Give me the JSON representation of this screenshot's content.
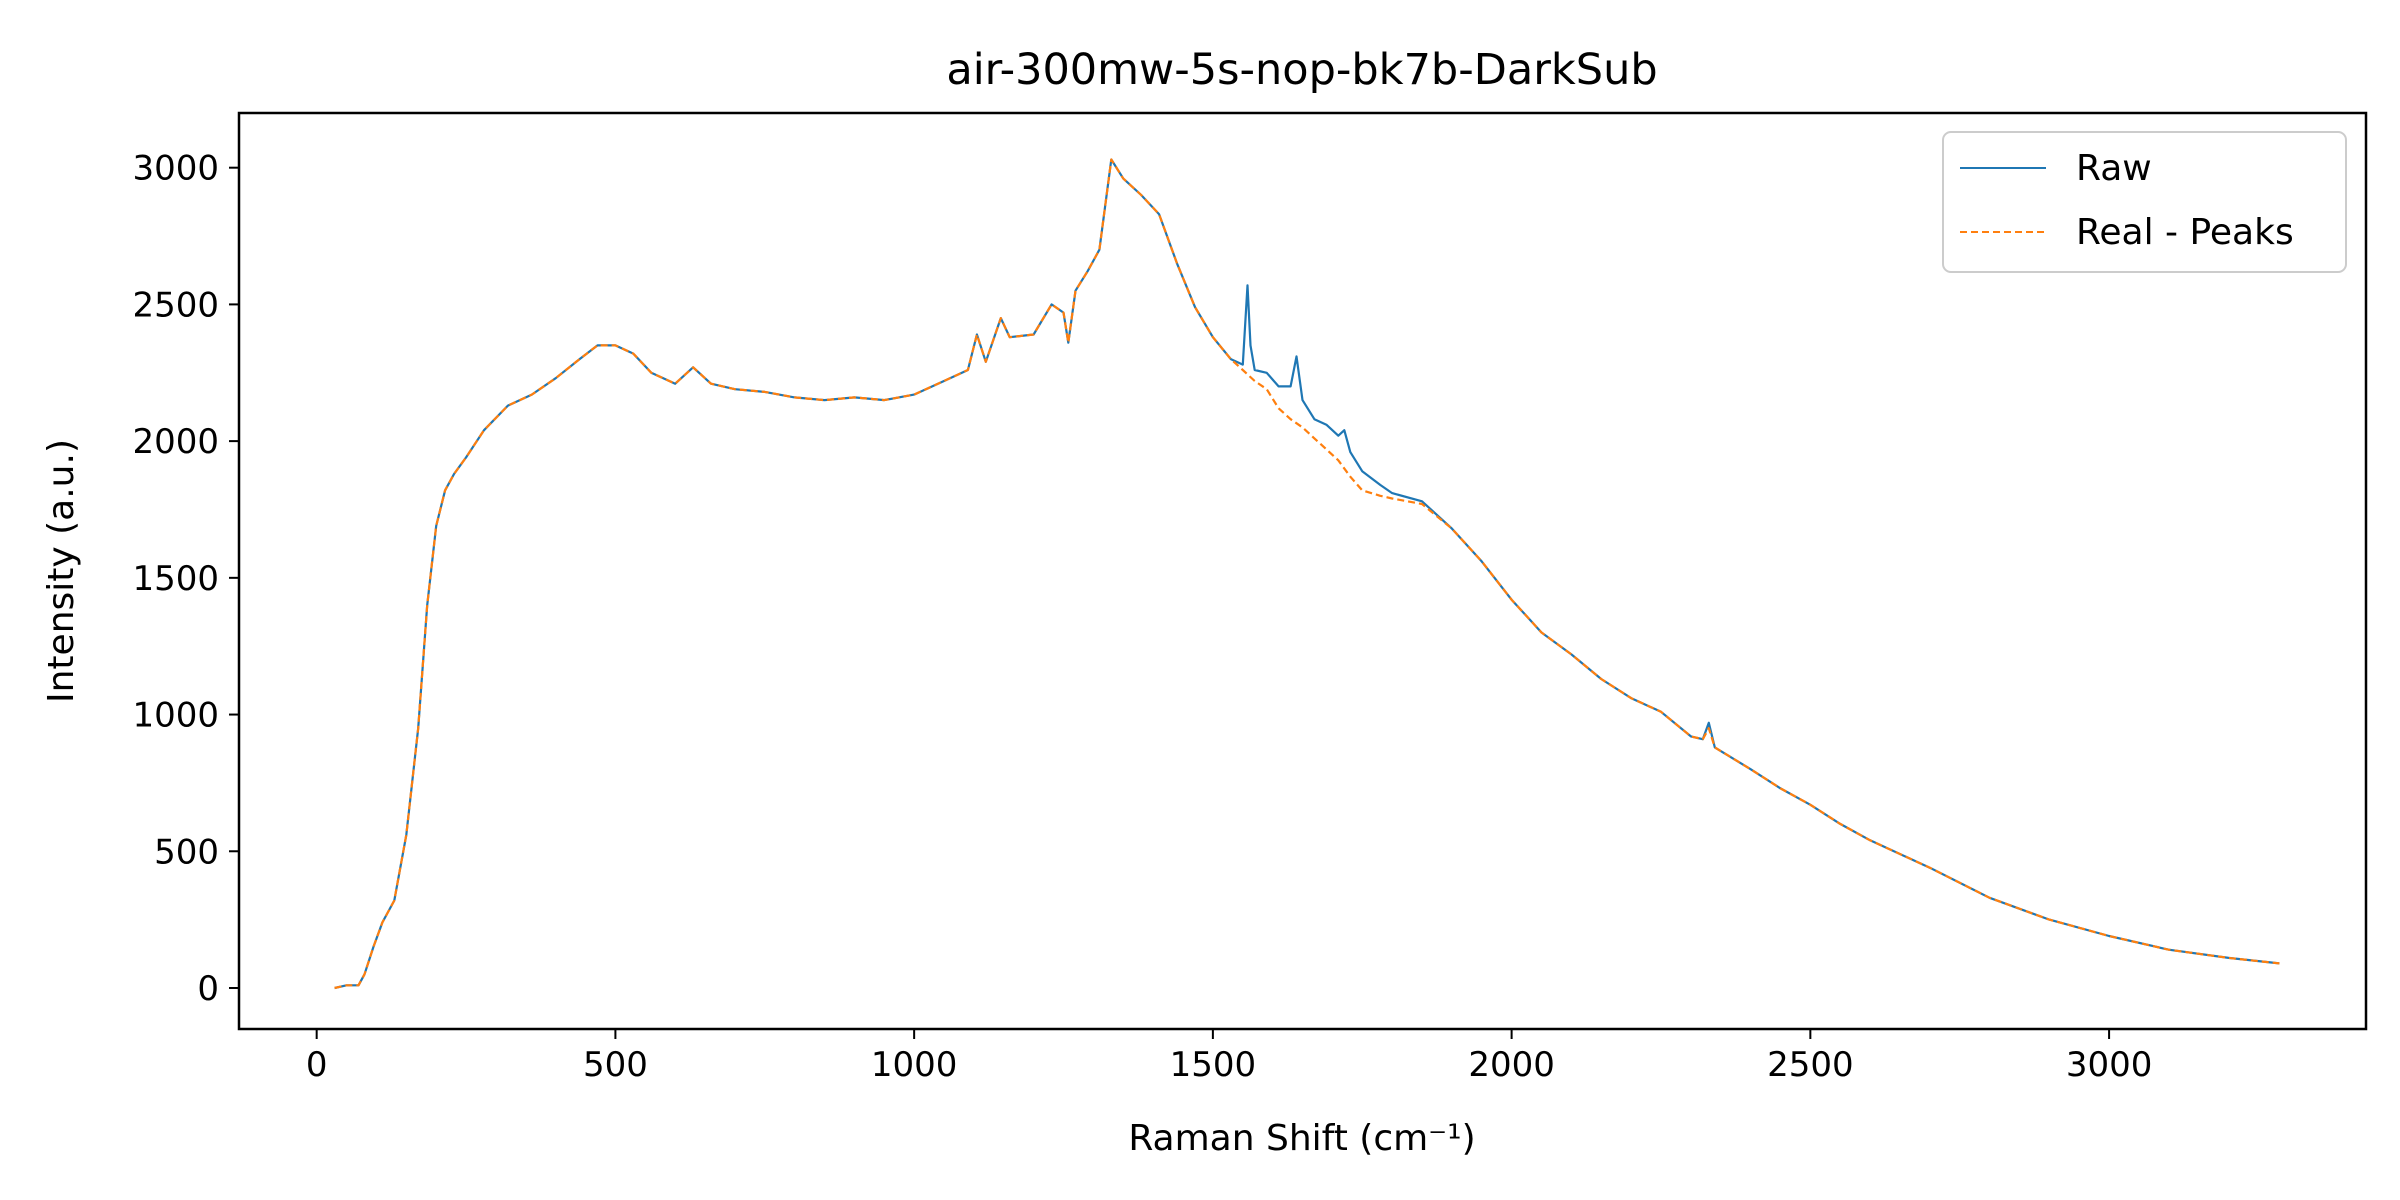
{
  "chart_data": {
    "type": "line",
    "title": "air-300mw-5s-nop-bk7b-DarkSub",
    "xlabel": "Raman Shift (cm⁻¹)",
    "ylabel": "Intensity (a.u.)",
    "xlim": [
      -130,
      3430
    ],
    "ylim": [
      -150,
      3200
    ],
    "xticks": [
      0,
      500,
      1000,
      1500,
      2000,
      2500,
      3000
    ],
    "yticks": [
      0,
      500,
      1000,
      1500,
      2000,
      2500,
      3000
    ],
    "grid": false,
    "legend": "top-right",
    "series": [
      {
        "name": "Raw",
        "color": "#1f77b4",
        "style": "solid",
        "x": [
          30,
          50,
          70,
          80,
          95,
          110,
          130,
          150,
          170,
          185,
          200,
          215,
          230,
          250,
          280,
          320,
          360,
          400,
          440,
          470,
          500,
          530,
          560,
          600,
          630,
          660,
          700,
          750,
          800,
          850,
          900,
          950,
          1000,
          1050,
          1090,
          1105,
          1120,
          1145,
          1160,
          1200,
          1230,
          1250,
          1258,
          1270,
          1290,
          1310,
          1330,
          1350,
          1380,
          1410,
          1440,
          1470,
          1500,
          1530,
          1550,
          1558,
          1563,
          1570,
          1590,
          1610,
          1630,
          1640,
          1650,
          1670,
          1690,
          1710,
          1720,
          1730,
          1750,
          1780,
          1800,
          1850,
          1900,
          1950,
          2000,
          2050,
          2100,
          2150,
          2200,
          2250,
          2300,
          2320,
          2330,
          2340,
          2400,
          2450,
          2500,
          2550,
          2600,
          2700,
          2800,
          2900,
          3000,
          3100,
          3200,
          3285
        ],
        "y": [
          0,
          10,
          10,
          50,
          150,
          240,
          320,
          560,
          950,
          1400,
          1690,
          1820,
          1880,
          1940,
          2040,
          2130,
          2170,
          2230,
          2300,
          2350,
          2350,
          2320,
          2250,
          2210,
          2270,
          2210,
          2190,
          2180,
          2160,
          2150,
          2160,
          2150,
          2170,
          2220,
          2260,
          2390,
          2290,
          2450,
          2380,
          2390,
          2500,
          2470,
          2360,
          2550,
          2620,
          2700,
          3030,
          2960,
          2900,
          2830,
          2650,
          2490,
          2380,
          2300,
          2280,
          2570,
          2350,
          2260,
          2250,
          2200,
          2200,
          2310,
          2150,
          2080,
          2060,
          2020,
          2040,
          1960,
          1890,
          1840,
          1810,
          1780,
          1680,
          1560,
          1420,
          1300,
          1220,
          1130,
          1060,
          1010,
          920,
          910,
          970,
          880,
          800,
          730,
          670,
          600,
          540,
          440,
          330,
          250,
          190,
          140,
          110,
          90
        ]
      },
      {
        "name": "Real - Peaks",
        "color": "#ff7f0e",
        "style": "dashed",
        "x": [
          30,
          50,
          70,
          80,
          95,
          110,
          130,
          150,
          170,
          185,
          200,
          215,
          230,
          250,
          280,
          320,
          360,
          400,
          440,
          470,
          500,
          530,
          560,
          600,
          630,
          660,
          700,
          750,
          800,
          850,
          900,
          950,
          1000,
          1050,
          1090,
          1105,
          1120,
          1145,
          1160,
          1200,
          1230,
          1250,
          1258,
          1270,
          1290,
          1310,
          1330,
          1350,
          1380,
          1410,
          1440,
          1470,
          1500,
          1530,
          1550,
          1570,
          1590,
          1610,
          1630,
          1650,
          1670,
          1690,
          1710,
          1730,
          1750,
          1780,
          1800,
          1850,
          1900,
          1950,
          2000,
          2050,
          2100,
          2150,
          2200,
          2250,
          2300,
          2320,
          2330,
          2340,
          2400,
          2450,
          2500,
          2550,
          2600,
          2700,
          2800,
          2900,
          3000,
          3100,
          3200,
          3285
        ],
        "y": [
          0,
          10,
          10,
          50,
          150,
          240,
          320,
          560,
          950,
          1400,
          1690,
          1820,
          1880,
          1940,
          2040,
          2130,
          2170,
          2230,
          2300,
          2350,
          2350,
          2320,
          2250,
          2210,
          2270,
          2210,
          2190,
          2180,
          2160,
          2150,
          2160,
          2150,
          2170,
          2220,
          2260,
          2390,
          2290,
          2450,
          2380,
          2390,
          2500,
          2470,
          2360,
          2550,
          2620,
          2700,
          3030,
          2960,
          2900,
          2830,
          2650,
          2490,
          2380,
          2300,
          2260,
          2220,
          2190,
          2120,
          2080,
          2050,
          2010,
          1970,
          1930,
          1870,
          1820,
          1800,
          1790,
          1770,
          1680,
          1560,
          1420,
          1300,
          1220,
          1130,
          1060,
          1010,
          920,
          910,
          950,
          880,
          800,
          730,
          670,
          600,
          540,
          440,
          330,
          250,
          190,
          140,
          110,
          90
        ]
      }
    ]
  }
}
